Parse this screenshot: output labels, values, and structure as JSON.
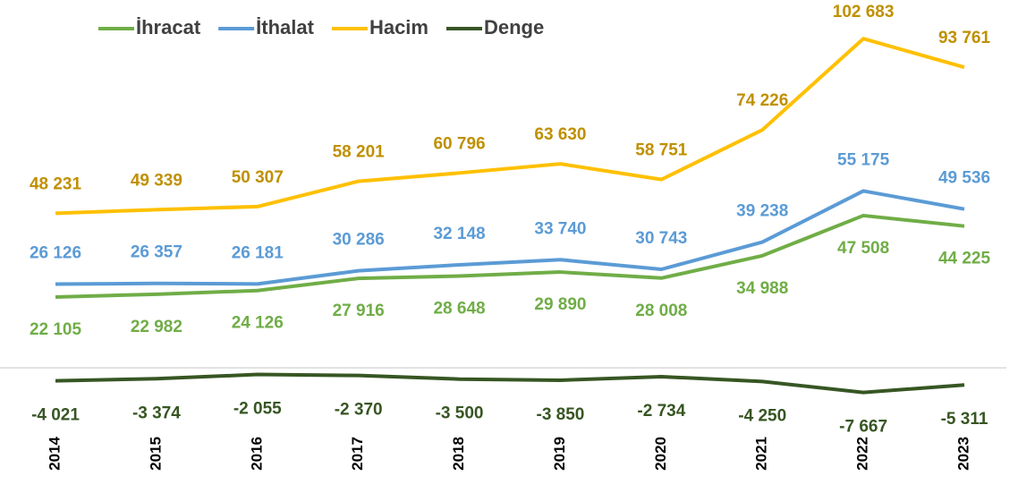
{
  "chart_data": {
    "type": "line",
    "x": [
      "2014",
      "2015",
      "2016",
      "2017",
      "2018",
      "2019",
      "2020",
      "2021",
      "2022",
      "2023"
    ],
    "ylim": [
      -10000,
      110000
    ],
    "series": [
      {
        "name": "İhracat",
        "color": "#70ad47",
        "label_color": "#70ad47",
        "values": [
          22105,
          22982,
          24126,
          27916,
          28648,
          29890,
          28008,
          34988,
          47508,
          44225
        ],
        "value_labels": [
          "22 105",
          "22 982",
          "24 126",
          "27 916",
          "28 648",
          "29 890",
          "28 008",
          "34 988",
          "47 508",
          "44 225"
        ]
      },
      {
        "name": "İthalat",
        "color": "#5b9bd5",
        "label_color": "#5b9bd5",
        "values": [
          26126,
          26357,
          26181,
          30286,
          32148,
          33740,
          30743,
          39238,
          55175,
          49536
        ],
        "value_labels": [
          "26 126",
          "26 357",
          "26 181",
          "30 286",
          "32 148",
          "33 740",
          "30 743",
          "39 238",
          "55 175",
          "49 536"
        ]
      },
      {
        "name": "Hacim",
        "color": "#ffc000",
        "label_color": "#bf9000",
        "values": [
          48231,
          49339,
          50307,
          58201,
          60796,
          63630,
          58751,
          74226,
          102683,
          93761
        ],
        "value_labels": [
          "48 231",
          "49 339",
          "50 307",
          "58 201",
          "60 796",
          "63 630",
          "58 751",
          "74 226",
          "102 683",
          "93 761"
        ]
      },
      {
        "name": "Denge",
        "color": "#375623",
        "label_color": "#375623",
        "values": [
          -4021,
          -3374,
          -2055,
          -2370,
          -3500,
          -3850,
          -2734,
          -4250,
          -7667,
          -5311
        ],
        "value_labels": [
          "-4 021",
          "-3 374",
          "-2 055",
          "-2 370",
          "-3 500",
          "-3 850",
          "-2 734",
          "-4 250",
          "-7 667",
          "-5 311"
        ]
      }
    ]
  }
}
